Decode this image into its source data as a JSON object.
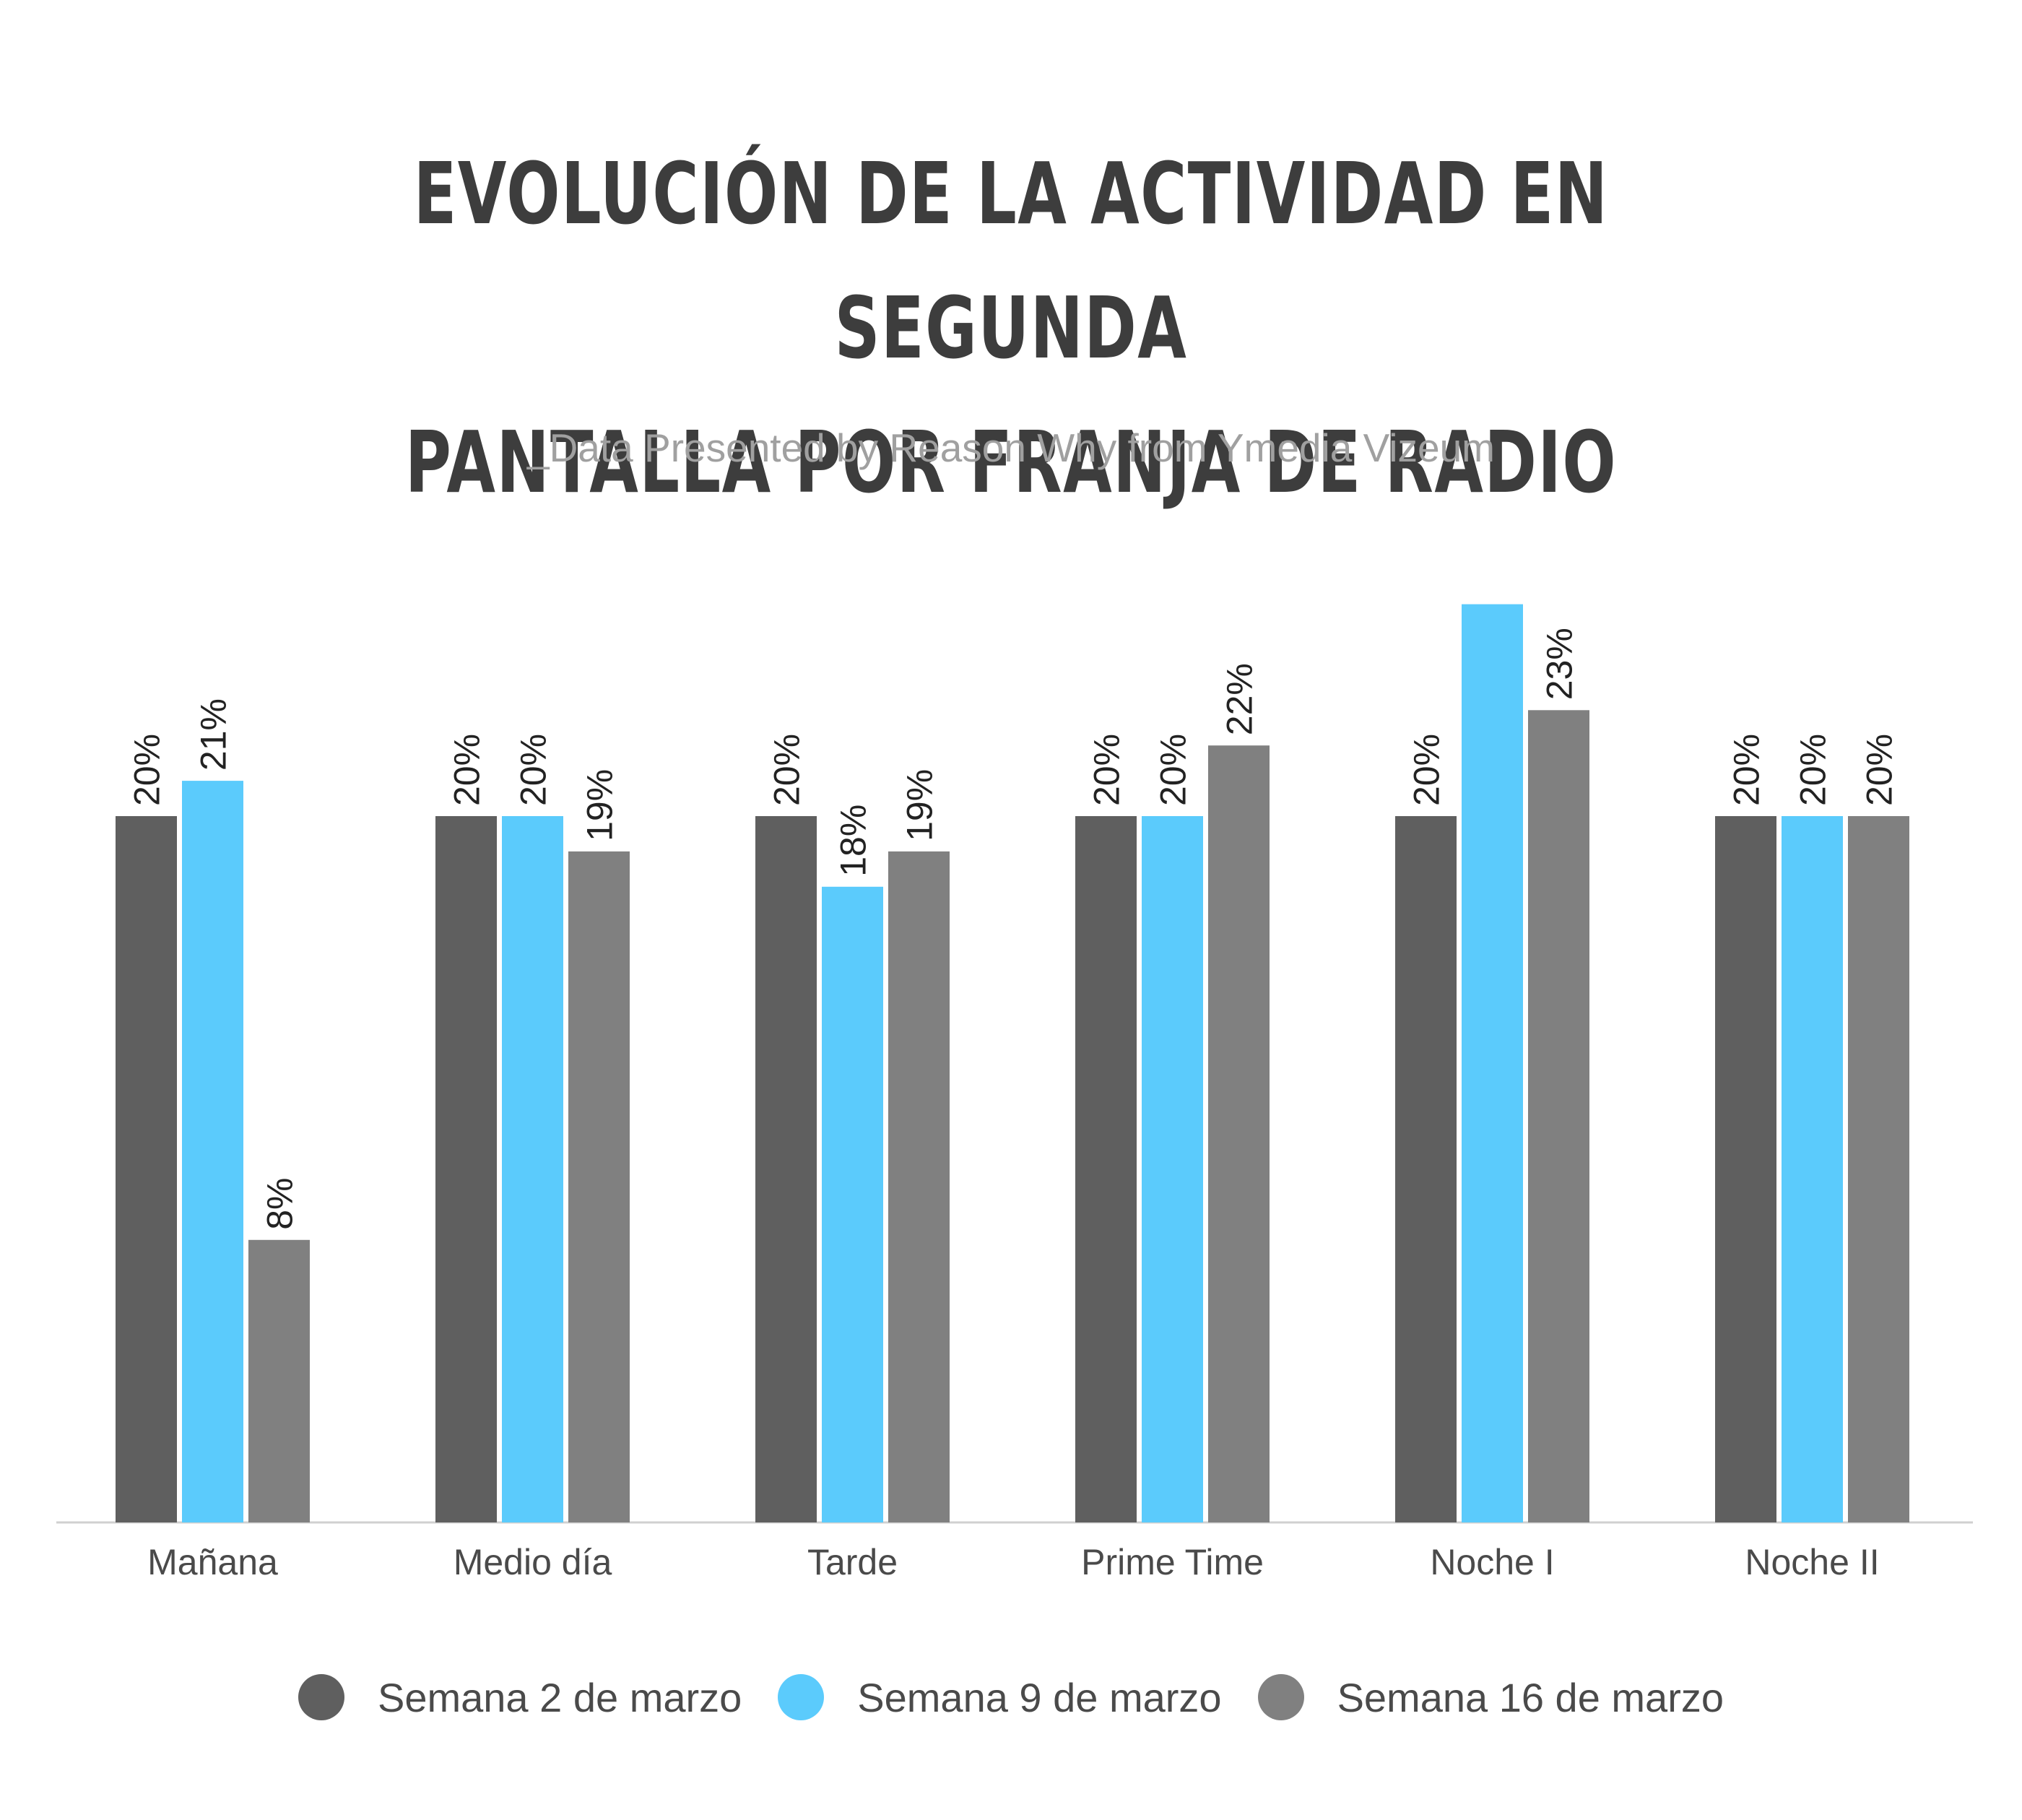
{
  "title_lines": [
    "EVOLUCIÓN DE LA ACTIVIDAD EN SEGUNDA",
    "PANTALLA POR FRANJA DE RADIO"
  ],
  "subtitle": "_Data Presented by Reason Why from Ymedia Vizeum",
  "colors": {
    "series1": "#5f5f5f",
    "series2": "#5bcbfc",
    "series3": "#808080",
    "axis": "#d0d0d0",
    "text": "#4a4a4a"
  },
  "chart_data": {
    "type": "bar",
    "title": "EVOLUCIÓN DE LA ACTIVIDAD EN SEGUNDA PANTALLA POR FRANJA DE RADIO",
    "subtitle": "_Data Presented by Reason Why from Ymedia Vizeum",
    "categories": [
      "Mañana",
      "Medio día",
      "Tarde",
      "Prime Time",
      "Noche I",
      "Noche II"
    ],
    "series": [
      {
        "name": "Semana 2 de marzo",
        "values": [
          20,
          20,
          20,
          20,
          20,
          20
        ],
        "labels": [
          "20%",
          "20%",
          "20%",
          "20%",
          "20%",
          "20%"
        ]
      },
      {
        "name": "Semana 9 de marzo",
        "values": [
          21,
          20,
          18,
          20,
          26,
          20
        ],
        "labels": [
          "21%",
          "20%",
          "18%",
          "20%",
          "",
          "20%"
        ]
      },
      {
        "name": "Semana 16 de marzo",
        "values": [
          8,
          19,
          19,
          22,
          23,
          20
        ],
        "labels": [
          "8%",
          "19%",
          "19%",
          "22%",
          "23%",
          "20%"
        ]
      }
    ],
    "ylim": [
      0,
      26
    ],
    "xlabel": "",
    "ylabel": "",
    "grid": false,
    "legend": "bottom"
  }
}
